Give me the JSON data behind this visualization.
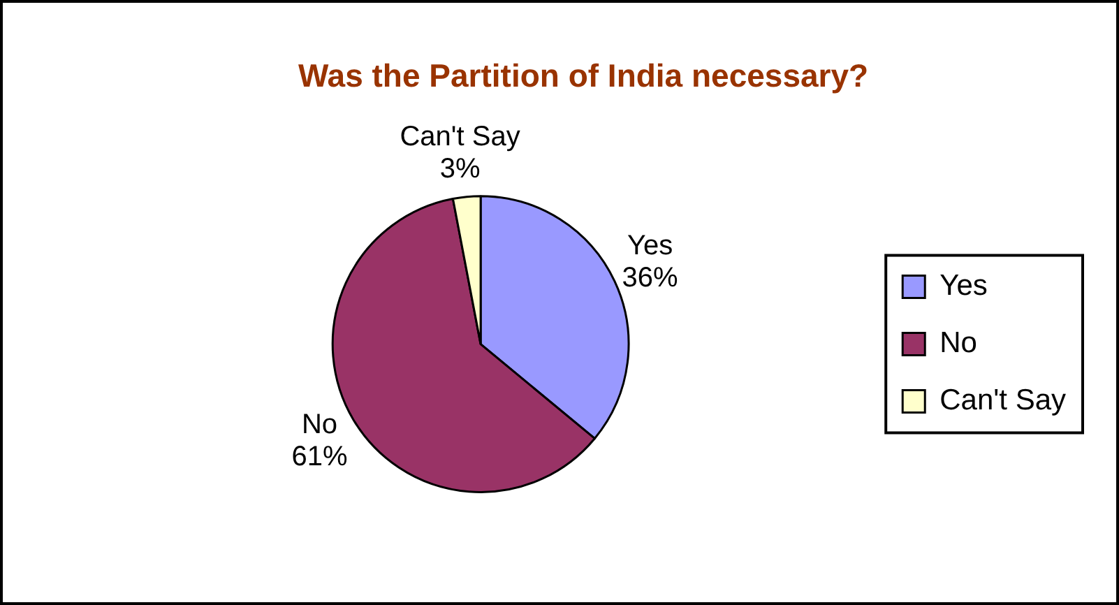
{
  "chart_data": {
    "type": "pie",
    "title": "Was the Partition of India necessary?",
    "categories": [
      "Yes",
      "No",
      "Can't Say"
    ],
    "values": [
      36,
      61,
      3
    ],
    "colors": [
      "#9999ff",
      "#993366",
      "#ffffcc"
    ],
    "value_labels": [
      "36%",
      "61%",
      "3%"
    ],
    "legend": "right"
  }
}
